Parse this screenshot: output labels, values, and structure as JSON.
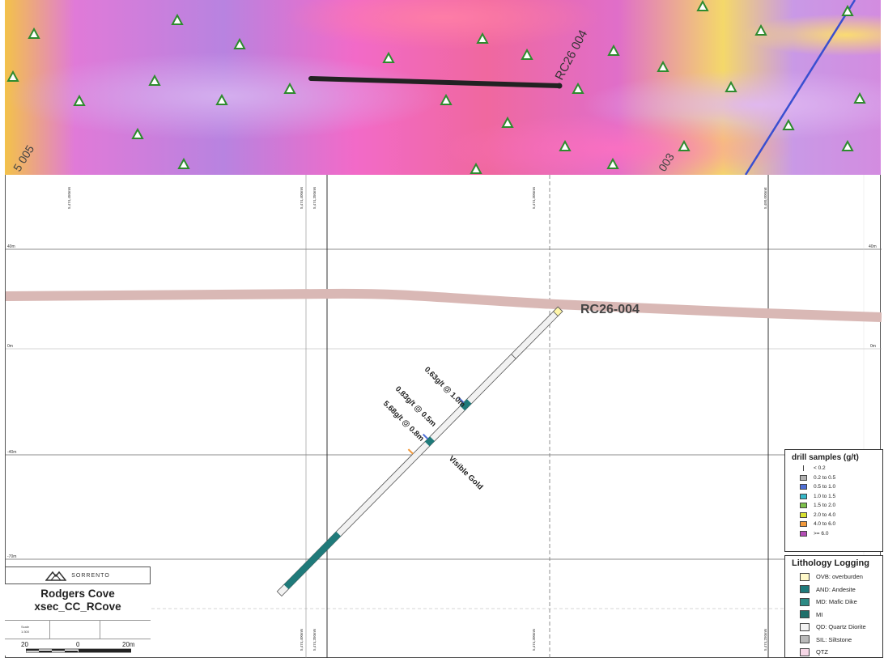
{
  "map": {
    "triangle_color": "#2e8b2e",
    "hole_label": "RC26 004",
    "other_labels": [
      "5 005",
      "003"
    ]
  },
  "section": {
    "hole_id": "RC26-004",
    "intercepts": [
      "0.63g/t @ 1.0m",
      "0.83g/t @ 0.5m",
      "5.68g/t @ 0.8m"
    ],
    "visible_gold": "Visible Gold",
    "elevations_left": [
      "40m",
      "0m",
      "-40m",
      "-70m"
    ],
    "elevations_right": [
      "40m",
      "0m"
    ],
    "northings_top": [
      "5,474,450mN",
      "5,474,400mN",
      "5,474,350mN",
      "5,474,300mN",
      "5,480,000mE"
    ],
    "northings_bottom": [
      "5,474,400mN",
      "5,474,350mN",
      "5,474,300mN",
      "5,474,250mN"
    ]
  },
  "drill_legend": {
    "title": "drill samples (g/t)",
    "items": [
      {
        "label": "< 0.2",
        "color": "none"
      },
      {
        "label": "0.2 to 0.5",
        "color": "#b0b0b0"
      },
      {
        "label": "0.5 to 1.0",
        "color": "#4f6fd6"
      },
      {
        "label": "1.0 to 1.5",
        "color": "#35b8c9"
      },
      {
        "label": "1.5 to 2.0",
        "color": "#7cc04a"
      },
      {
        "label": "2.0 to 4.0",
        "color": "#d7e030"
      },
      {
        "label": "4.0 to 6.0",
        "color": "#f2993b"
      },
      {
        "label": ">= 6.0",
        "color": "#b44db6"
      }
    ]
  },
  "lith_legend": {
    "title": "Lithology Logging",
    "items": [
      {
        "label": "OVB: overburden",
        "color": "#fff9c9"
      },
      {
        "label": "AND: Andesite",
        "color": "#1f7a7a"
      },
      {
        "label": "MD: Mafic Dike",
        "color": "#2c8a84"
      },
      {
        "label": "MI",
        "color": "#1f6f6a"
      },
      {
        "label": "QD: Quartz Diorite",
        "color": "#f2f2f2"
      },
      {
        "label": "SIL: Siltstone",
        "color": "#b9b9b9"
      },
      {
        "label": "QTZ",
        "color": "#f6d7e6"
      }
    ]
  },
  "title_block": {
    "company": "SORRENTO",
    "project": "Rodgers Cove",
    "section_name": "xsec_CC_RCove",
    "scale_label": "Scale",
    "scale_value": "1:300",
    "scale_ticks": [
      "20",
      "0",
      "20m"
    ]
  }
}
